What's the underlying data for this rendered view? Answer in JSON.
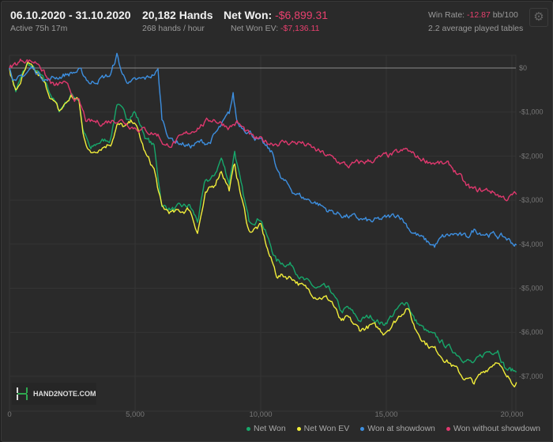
{
  "header": {
    "date_range": "06.10.2020 - 31.10.2020",
    "active": "Active 75h 17m",
    "hands": "20,182 Hands",
    "hands_per_hour": "268 hands / hour",
    "net_won_label": "Net Won:",
    "net_won_value": "-$6,899.31",
    "net_won_ev_label": "Net Won  EV:",
    "net_won_ev_value": "-$7,136.11",
    "win_rate_label": "Win Rate:",
    "win_rate_value": "-12.87",
    "win_rate_unit": "bb/100",
    "avg_tables": "2.2 average played tables"
  },
  "settings_icon": "gear-icon",
  "logo_text": "HAND2NOTE.COM",
  "colors": {
    "net_won": "#17a86b",
    "net_won_ev": "#f2ee3a",
    "showdown": "#3d8fe0",
    "no_showdown": "#e0386e",
    "negative": "#e8406e"
  },
  "chart_data": {
    "type": "line",
    "xlim": [
      0,
      20182
    ],
    "ylim": [
      -7800,
      300
    ],
    "x_ticks": [
      0,
      5000,
      10000,
      15000,
      20000
    ],
    "x_tick_labels": [
      "0",
      "5,000",
      "10,000",
      "15,000",
      "20,000"
    ],
    "y_ticks": [
      0,
      -1000,
      -2000,
      -3000,
      -4000,
      -5000,
      -6000,
      -7000
    ],
    "y_tick_labels": [
      "$0",
      "-$1,000",
      "-$2,000",
      "-$3,000",
      "-$4,000",
      "-$5,000",
      "-$6,000",
      "-$7,000"
    ],
    "grid": true,
    "legend_position": "bottom-right",
    "series": [
      {
        "name": "Net Won",
        "color_key": "net_won",
        "points": [
          [
            0,
            0
          ],
          [
            252,
            -520
          ],
          [
            723,
            108
          ],
          [
            1195,
            -160
          ],
          [
            1510,
            -431
          ],
          [
            1981,
            -970
          ],
          [
            2453,
            -610
          ],
          [
            2767,
            -700
          ],
          [
            2925,
            -1420
          ],
          [
            3240,
            -1870
          ],
          [
            3554,
            -1690
          ],
          [
            4026,
            -1600
          ],
          [
            4277,
            -790
          ],
          [
            4654,
            -1150
          ],
          [
            4969,
            -970
          ],
          [
            5441,
            -1600
          ],
          [
            5755,
            -1780
          ],
          [
            6070,
            -3130
          ],
          [
            6541,
            -3210
          ],
          [
            7170,
            -3130
          ],
          [
            7485,
            -3480
          ],
          [
            7800,
            -2590
          ],
          [
            8115,
            -2500
          ],
          [
            8430,
            -2050
          ],
          [
            8744,
            -2590
          ],
          [
            8964,
            -1870
          ],
          [
            9216,
            -2670
          ],
          [
            9530,
            -3480
          ],
          [
            10002,
            -3390
          ],
          [
            10316,
            -3930
          ],
          [
            10631,
            -4380
          ],
          [
            11260,
            -4470
          ],
          [
            11732,
            -4830
          ],
          [
            12204,
            -5010
          ],
          [
            12518,
            -5010
          ],
          [
            12833,
            -5100
          ],
          [
            13210,
            -5550
          ],
          [
            13462,
            -5460
          ],
          [
            13934,
            -5730
          ],
          [
            14406,
            -5640
          ],
          [
            14877,
            -5820
          ],
          [
            15349,
            -5550
          ],
          [
            15821,
            -5280
          ],
          [
            16135,
            -5730
          ],
          [
            16607,
            -6000
          ],
          [
            17079,
            -6180
          ],
          [
            17550,
            -6370
          ],
          [
            18022,
            -6550
          ],
          [
            18494,
            -6730
          ],
          [
            18966,
            -6460
          ],
          [
            19438,
            -6370
          ],
          [
            19752,
            -6820
          ],
          [
            20182,
            -6899
          ]
        ]
      },
      {
        "name": "Net Won  EV",
        "color_key": "net_won_ev",
        "points": [
          [
            0,
            0
          ],
          [
            252,
            -550
          ],
          [
            723,
            50
          ],
          [
            1195,
            -200
          ],
          [
            1510,
            -500
          ],
          [
            1981,
            -1000
          ],
          [
            2453,
            -650
          ],
          [
            2767,
            -750
          ],
          [
            2925,
            -1500
          ],
          [
            3240,
            -1950
          ],
          [
            3554,
            -1800
          ],
          [
            4026,
            -1700
          ],
          [
            4277,
            -1300
          ],
          [
            4654,
            -1350
          ],
          [
            4969,
            -1200
          ],
          [
            5441,
            -2000
          ],
          [
            5755,
            -2300
          ],
          [
            6070,
            -3200
          ],
          [
            6541,
            -3300
          ],
          [
            7170,
            -3200
          ],
          [
            7485,
            -3700
          ],
          [
            7800,
            -2900
          ],
          [
            8115,
            -2700
          ],
          [
            8430,
            -2300
          ],
          [
            8744,
            -2750
          ],
          [
            8964,
            -2200
          ],
          [
            9216,
            -2900
          ],
          [
            9530,
            -3700
          ],
          [
            10002,
            -3600
          ],
          [
            10316,
            -4200
          ],
          [
            10631,
            -4700
          ],
          [
            11260,
            -4750
          ],
          [
            11732,
            -5000
          ],
          [
            12204,
            -5150
          ],
          [
            12518,
            -5200
          ],
          [
            12833,
            -5300
          ],
          [
            13210,
            -5800
          ],
          [
            13462,
            -5700
          ],
          [
            13934,
            -5950
          ],
          [
            14406,
            -5850
          ],
          [
            14877,
            -6000
          ],
          [
            15349,
            -5750
          ],
          [
            15821,
            -5400
          ],
          [
            16135,
            -5900
          ],
          [
            16607,
            -6250
          ],
          [
            17079,
            -6450
          ],
          [
            17550,
            -6700
          ],
          [
            18022,
            -7000
          ],
          [
            18494,
            -7150
          ],
          [
            18966,
            -6850
          ],
          [
            19438,
            -6600
          ],
          [
            19752,
            -7050
          ],
          [
            20182,
            -7136
          ]
        ]
      },
      {
        "name": "Won at showdown",
        "color_key": "showdown",
        "points": [
          [
            0,
            0
          ],
          [
            252,
            -340
          ],
          [
            881,
            0
          ],
          [
            1510,
            -270
          ],
          [
            2139,
            -160
          ],
          [
            2767,
            -70
          ],
          [
            3240,
            -340
          ],
          [
            3554,
            -250
          ],
          [
            4026,
            -160
          ],
          [
            4277,
            290
          ],
          [
            4497,
            -160
          ],
          [
            4811,
            -340
          ],
          [
            5441,
            -250
          ],
          [
            5912,
            -70
          ],
          [
            6070,
            -1150
          ],
          [
            6384,
            -1600
          ],
          [
            7170,
            -1780
          ],
          [
            7643,
            -1690
          ],
          [
            7957,
            -1690
          ],
          [
            8430,
            -1330
          ],
          [
            8744,
            -1060
          ],
          [
            8901,
            -610
          ],
          [
            9059,
            -1240
          ],
          [
            9530,
            -1420
          ],
          [
            10002,
            -1690
          ],
          [
            10474,
            -1960
          ],
          [
            10788,
            -2500
          ],
          [
            11260,
            -2780
          ],
          [
            11732,
            -2960
          ],
          [
            12204,
            -3050
          ],
          [
            12676,
            -3230
          ],
          [
            13147,
            -3320
          ],
          [
            13776,
            -3410
          ],
          [
            14406,
            -3500
          ],
          [
            15034,
            -3410
          ],
          [
            15506,
            -3320
          ],
          [
            15978,
            -3680
          ],
          [
            16607,
            -3950
          ],
          [
            16922,
            -4040
          ],
          [
            17236,
            -3860
          ],
          [
            17708,
            -3770
          ],
          [
            18180,
            -3860
          ],
          [
            18494,
            -3680
          ],
          [
            19123,
            -3770
          ],
          [
            19752,
            -3860
          ],
          [
            20182,
            -4020
          ]
        ]
      },
      {
        "name": "Won without showdown",
        "color_key": "no_showdown",
        "points": [
          [
            0,
            0
          ],
          [
            566,
            200
          ],
          [
            1195,
            110
          ],
          [
            1510,
            -250
          ],
          [
            1824,
            -430
          ],
          [
            2139,
            -340
          ],
          [
            2767,
            -790
          ],
          [
            3082,
            -1240
          ],
          [
            3711,
            -1240
          ],
          [
            4340,
            -1150
          ],
          [
            4969,
            -1330
          ],
          [
            5912,
            -1510
          ],
          [
            6227,
            -1780
          ],
          [
            6856,
            -1600
          ],
          [
            7485,
            -1330
          ],
          [
            8115,
            -1150
          ],
          [
            8744,
            -1330
          ],
          [
            9059,
            -1240
          ],
          [
            9688,
            -1600
          ],
          [
            10316,
            -1690
          ],
          [
            10945,
            -1690
          ],
          [
            11575,
            -1690
          ],
          [
            12204,
            -1870
          ],
          [
            12833,
            -2050
          ],
          [
            13462,
            -2230
          ],
          [
            14091,
            -2140
          ],
          [
            14720,
            -2050
          ],
          [
            15349,
            -1960
          ],
          [
            15821,
            -1870
          ],
          [
            16293,
            -2050
          ],
          [
            16922,
            -2140
          ],
          [
            17551,
            -2230
          ],
          [
            17865,
            -2410
          ],
          [
            18180,
            -2690
          ],
          [
            18494,
            -2780
          ],
          [
            19123,
            -2780
          ],
          [
            19752,
            -2960
          ],
          [
            20182,
            -2870
          ]
        ]
      }
    ]
  }
}
